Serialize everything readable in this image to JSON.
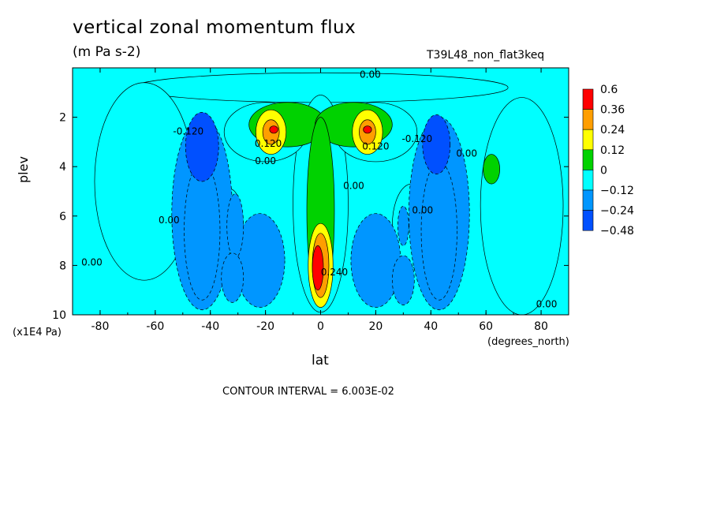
{
  "chart_data": {
    "type": "heatmap",
    "title": "vertical zonal momentum flux",
    "units": "(m Pa s-2)",
    "dataset_label": "T39L48_non_flat3keq",
    "xlabel": "lat",
    "x_units": "(degrees_north)",
    "ylabel": "plev",
    "y_units": "(x1E4 Pa)",
    "contour_interval_text": "CONTOUR INTERVAL = 6.003E-02",
    "xlim": [
      -90,
      90
    ],
    "ylim": [
      0,
      10
    ],
    "y_inverted": true,
    "x_ticks": [
      -80,
      -60,
      -40,
      -20,
      0,
      20,
      40,
      60,
      80
    ],
    "y_ticks": [
      2,
      4,
      6,
      8,
      10
    ],
    "colorbar": {
      "labels": [
        "0.6",
        "0.36",
        "0.24",
        "0.12",
        "0",
        "−0.12",
        "−0.24",
        "−0.48"
      ],
      "colors": [
        "#ff0000",
        "#ff9e00",
        "#ffff00",
        "#00d200",
        "#00ffff",
        "#0096ff",
        "#0050ff"
      ]
    },
    "contour_labels": [
      {
        "text": "0.00",
        "lat": 18,
        "plev": 0.4
      },
      {
        "text": "-0.120",
        "lat": -48,
        "plev": 2.7
      },
      {
        "text": "0.120",
        "lat": -19,
        "plev": 3.2
      },
      {
        "text": "0.00",
        "lat": -20,
        "plev": 3.9
      },
      {
        "text": "0.120",
        "lat": 20,
        "plev": 3.3
      },
      {
        "text": "0.00",
        "lat": 12,
        "plev": 4.9
      },
      {
        "text": "-0.120",
        "lat": 35,
        "plev": 3.0
      },
      {
        "text": "0.00",
        "lat": 53,
        "plev": 3.6
      },
      {
        "text": "0.00",
        "lat": -55,
        "plev": 6.3
      },
      {
        "text": "0.00",
        "lat": -83,
        "plev": 8.0
      },
      {
        "text": "0.00",
        "lat": 37,
        "plev": 5.9
      },
      {
        "text": "0.240",
        "lat": 5,
        "plev": 8.4
      },
      {
        "text": "0.00",
        "lat": 82,
        "plev": 9.7
      }
    ],
    "fields": [
      {
        "level": "0",
        "shape": "band",
        "lat": [
          -90,
          90
        ],
        "plev": [
          0,
          0.3
        ]
      },
      {
        "level": "0",
        "shape": "ellipse",
        "lat": 0,
        "plev": 0.8,
        "rlat": 68,
        "rplev": 0.6
      },
      {
        "level": "0",
        "shape": "ellipse",
        "lat": -64,
        "plev": 4.6,
        "rlat": 18,
        "rplev": 4.0
      },
      {
        "level": "0",
        "shape": "ellipse",
        "lat": 73,
        "plev": 5.6,
        "rlat": 15,
        "rplev": 4.4
      },
      {
        "level": "0",
        "shape": "ellipse",
        "lat": 0,
        "plev": 5.5,
        "rlat": 10,
        "rplev": 4.4
      },
      {
        "level": "0",
        "shape": "ellipse",
        "lat": -33,
        "plev": 6.5,
        "rlat": 5,
        "rplev": 1.6
      },
      {
        "level": "0",
        "shape": "ellipse",
        "lat": 33,
        "plev": 6.4,
        "rlat": 7,
        "rplev": 1.7
      },
      {
        "level": "0",
        "shape": "ellipse",
        "lat": -20,
        "plev": 2.6,
        "rlat": 15,
        "rplev": 1.2
      },
      {
        "level": "0",
        "shape": "ellipse",
        "lat": 20,
        "plev": 2.6,
        "rlat": 15,
        "rplev": 1.2
      },
      {
        "level": "-0.12",
        "shape": "ellipse",
        "lat": -43,
        "plev": 5.9,
        "rlat": 11,
        "rplev": 3.9
      },
      {
        "level": "-0.12",
        "shape": "ellipse",
        "lat": 43,
        "plev": 5.9,
        "rlat": 11,
        "rplev": 3.9
      },
      {
        "level": "-0.12",
        "shape": "ellipse",
        "lat": -22,
        "plev": 7.8,
        "rlat": 9,
        "rplev": 1.9
      },
      {
        "level": "-0.12",
        "shape": "ellipse",
        "lat": 20,
        "plev": 7.8,
        "rlat": 9,
        "rplev": 1.9
      },
      {
        "level": "0.12",
        "shape": "ellipse",
        "lat": -12,
        "plev": 2.3,
        "rlat": 14,
        "rplev": 0.9
      },
      {
        "level": "0.12",
        "shape": "ellipse",
        "lat": 12,
        "plev": 2.3,
        "rlat": 14,
        "rplev": 0.9
      },
      {
        "level": "0.12",
        "shape": "ellipse",
        "lat": 0,
        "plev": 5.8,
        "rlat": 5,
        "rplev": 3.8
      },
      {
        "level": "0.12",
        "shape": "ellipse",
        "lat": 62,
        "plev": 4.1,
        "rlat": 3,
        "rplev": 0.6
      },
      {
        "level": "-0.24",
        "shape": "ellipse",
        "lat": -43,
        "plev": 6.6,
        "rlat": 6.5,
        "rplev": 2.8
      },
      {
        "level": "-0.24",
        "shape": "ellipse",
        "lat": 43,
        "plev": 6.6,
        "rlat": 6.5,
        "rplev": 2.8
      },
      {
        "level": "-0.24",
        "shape": "ellipse",
        "lat": -31,
        "plev": 6.4,
        "rlat": 3,
        "rplev": 1.3
      },
      {
        "level": "-0.24",
        "shape": "ellipse",
        "lat": -32,
        "plev": 8.5,
        "rlat": 4,
        "rplev": 1.0
      },
      {
        "level": "-0.24",
        "shape": "ellipse",
        "lat": 30,
        "plev": 8.6,
        "rlat": 4,
        "rplev": 1.0
      },
      {
        "level": "-0.24",
        "shape": "ellipse",
        "lat": 30,
        "plev": 6.4,
        "rlat": 2,
        "rplev": 0.8
      },
      {
        "level": "-0.48",
        "shape": "ellipse",
        "lat": -43,
        "plev": 3.2,
        "rlat": 6,
        "rplev": 1.4
      },
      {
        "level": "-0.48",
        "shape": "ellipse",
        "lat": 42,
        "plev": 3.1,
        "rlat": 5,
        "rplev": 1.2
      },
      {
        "level": "0.24",
        "shape": "ellipse",
        "lat": -18,
        "plev": 2.6,
        "rlat": 5.5,
        "rplev": 0.9
      },
      {
        "level": "0.24",
        "shape": "ellipse",
        "lat": 17,
        "plev": 2.6,
        "rlat": 5.5,
        "rplev": 0.9
      },
      {
        "level": "0.24",
        "shape": "ellipse",
        "lat": 0,
        "plev": 8.0,
        "rlat": 4.5,
        "rplev": 1.7
      },
      {
        "level": "0.36",
        "shape": "ellipse",
        "lat": -18,
        "plev": 2.6,
        "rlat": 3,
        "rplev": 0.5
      },
      {
        "level": "0.36",
        "shape": "ellipse",
        "lat": 17,
        "plev": 2.6,
        "rlat": 3,
        "rplev": 0.5
      },
      {
        "level": "0.36",
        "shape": "ellipse",
        "lat": 0,
        "plev": 8.0,
        "rlat": 3,
        "rplev": 1.3
      },
      {
        "level": "0.6",
        "shape": "ellipse",
        "lat": -17,
        "plev": 2.5,
        "rlat": 1.5,
        "rplev": 0.15
      },
      {
        "level": "0.6",
        "shape": "ellipse",
        "lat": 17,
        "plev": 2.5,
        "rlat": 1.5,
        "rplev": 0.15
      },
      {
        "level": "0.6",
        "shape": "ellipse",
        "lat": -1,
        "plev": 8.1,
        "rlat": 2,
        "rplev": 0.9
      }
    ]
  }
}
